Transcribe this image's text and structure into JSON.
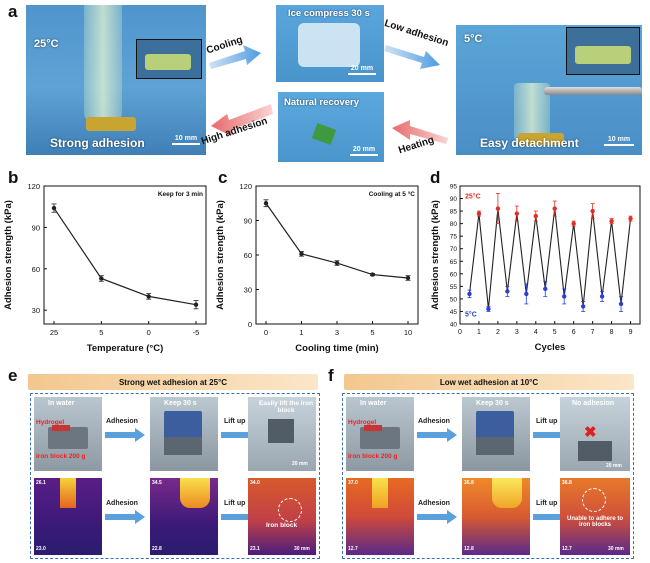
{
  "panel_a": {
    "label": "a",
    "photo1": {
      "temp": "25°C",
      "caption": "Strong adhesion",
      "scale": "10 mm"
    },
    "photo2": {
      "caption": "Ice compress 30 s",
      "scale": "20 mm"
    },
    "photo3": {
      "temp": "5°C",
      "caption": "Easy detachment",
      "scale": "10 mm"
    },
    "photo4": {
      "caption": "Natural recovery",
      "scale": "20 mm"
    },
    "arrows": {
      "cooling": "Cooling",
      "low_adhesion": "Low adhesion",
      "high_adhesion": "High adhesion",
      "heating": "Heating"
    }
  },
  "chart_data": [
    {
      "id": "b",
      "type": "line",
      "label": "b",
      "annotation": "Keep for 3 min",
      "categories": [
        "25",
        "5",
        "0",
        "-5"
      ],
      "values": [
        104,
        53,
        40,
        34
      ],
      "errors": [
        3,
        2,
        2,
        3
      ],
      "xlabel": "Temperature (°C)",
      "ylabel": "Adhesion strength (kPa)",
      "ylim": [
        20,
        120
      ],
      "yticks": [
        30,
        60,
        90,
        120
      ]
    },
    {
      "id": "c",
      "type": "line",
      "label": "c",
      "annotation": "Cooling at 5 °C",
      "categories": [
        "0",
        "1",
        "3",
        "5",
        "10"
      ],
      "values": [
        105,
        61,
        53,
        43,
        40
      ],
      "errors": [
        3,
        2,
        2,
        1,
        2
      ],
      "xlabel": "Cooling time (min)",
      "ylabel": "Adhesion strength (kPa)",
      "ylim": [
        0,
        120
      ],
      "yticks": [
        0,
        30,
        60,
        90,
        120
      ]
    },
    {
      "id": "d",
      "type": "line",
      "label": "d",
      "x": [
        0.5,
        1,
        1.5,
        2,
        2.5,
        3,
        3.5,
        4,
        4.5,
        5,
        5.5,
        6,
        6.5,
        7,
        7.5,
        8,
        8.5,
        9
      ],
      "values": [
        52,
        84,
        46,
        86,
        53,
        84,
        52,
        83,
        54,
        86,
        51,
        80,
        47,
        85,
        51,
        81,
        48,
        82
      ],
      "errors": [
        1.5,
        1,
        1,
        6,
        2,
        3,
        4,
        2,
        3,
        3,
        3,
        1,
        2,
        3,
        2,
        1,
        3,
        1
      ],
      "high_label": "25°C",
      "low_label": "5°C",
      "high_color": "#e0302a",
      "low_color": "#2a3fd6",
      "xlabel": "Cycles",
      "ylabel": "Adhesion strength (kPa)",
      "xlim": [
        0,
        9.5
      ],
      "ylim": [
        40,
        95
      ],
      "xticks": [
        0,
        1,
        2,
        3,
        4,
        5,
        6,
        7,
        8,
        9
      ],
      "yticks": [
        40,
        45,
        50,
        55,
        60,
        65,
        70,
        75,
        80,
        85,
        90,
        95
      ]
    }
  ],
  "panel_e": {
    "label": "e",
    "banner": "Strong wet adhesion at 25°C",
    "top": {
      "in_water": "In water",
      "hydrogel": "Hydrogel",
      "iron_block": "Iron block 200 g",
      "keep": "Keep 30 s",
      "lift": "Easily lift the iron block",
      "scale": "20 mm"
    },
    "bottom": {
      "iron_block": "Iron block",
      "scale": "30 mm",
      "t_high1": "26.1",
      "t_low1": "23.0",
      "t_high2": "34.5",
      "t_low2": "22.8",
      "t_high3": "34.0",
      "t_low3": "23.1"
    },
    "arrows": {
      "adhesion": "Adhesion",
      "lift_up": "Lift up"
    }
  },
  "panel_f": {
    "label": "f",
    "banner": "Low wet adhesion at 10°C",
    "top": {
      "in_water": "In water",
      "hydrogel": "Hydrogel",
      "iron_block": "Iron block 200 g",
      "keep": "Keep 30 s",
      "no_adhesion": "No adhesion",
      "scale": "20 mm"
    },
    "bottom": {
      "unable": "Unable to adhere to iron blocks",
      "scale": "30 mm",
      "t_high1": "37.0",
      "t_low1": "12.7",
      "t_high2": "36.8",
      "t_low2": "12.8",
      "t_high3": "36.8",
      "t_low3": "12.7"
    },
    "arrows": {
      "adhesion": "Adhesion",
      "lift_up": "Lift up"
    }
  }
}
